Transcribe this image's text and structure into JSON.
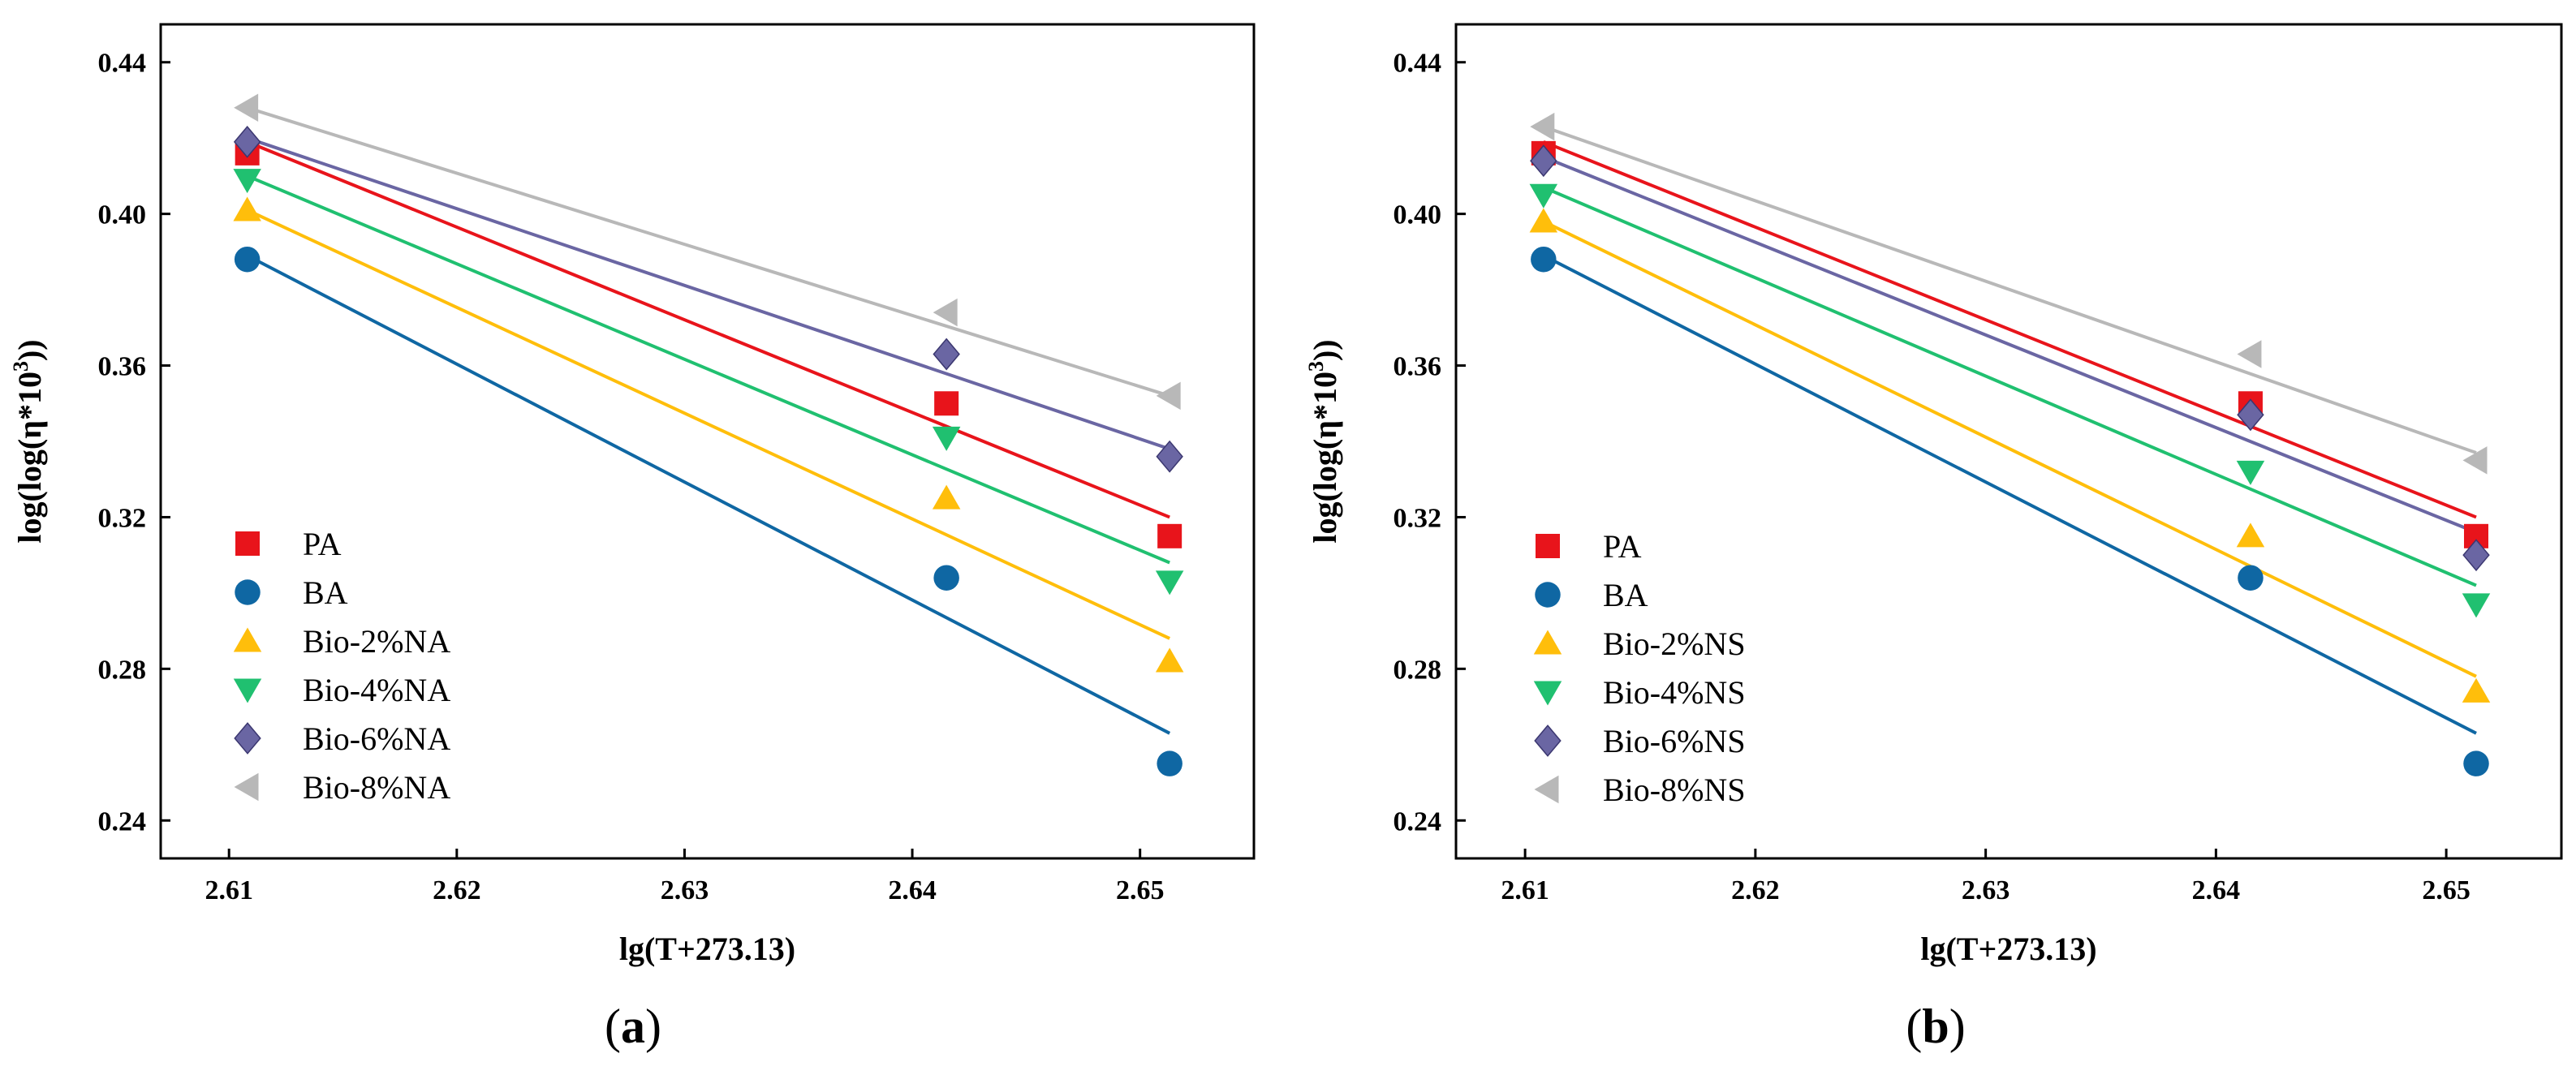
{
  "chart_data": [
    {
      "type": "scatter",
      "panel": "a",
      "caption": "(a)",
      "caption_letter": "a",
      "xlabel": "lg(T+273.13)",
      "ylabel_prefix": "log(log(η*10",
      "ylabel_sup": "3",
      "ylabel_suffix": "))",
      "xlim": [
        2.607,
        2.655
      ],
      "ylim": [
        0.23,
        0.45
      ],
      "xticks": [
        2.61,
        2.62,
        2.63,
        2.64,
        2.65
      ],
      "xtick_labels": [
        "2.61",
        "2.62",
        "2.63",
        "2.64",
        "2.65"
      ],
      "yticks": [
        0.24,
        0.28,
        0.32,
        0.36,
        0.4,
        0.44
      ],
      "ytick_labels": [
        "0.24",
        "0.28",
        "0.32",
        "0.36",
        "0.40",
        "0.44"
      ],
      "legend_position": "bottom-left",
      "series": [
        {
          "name": "PA",
          "color": "#e8141b",
          "marker": "square",
          "x": [
            2.6108,
            2.6415,
            2.6513
          ],
          "y": [
            0.416,
            0.35,
            0.315
          ],
          "fit": [
            [
              2.6108,
              0.419
            ],
            [
              2.6513,
              0.32
            ]
          ]
        },
        {
          "name": "BA",
          "color": "#0f67a3",
          "marker": "circle",
          "x": [
            2.6108,
            2.6415,
            2.6513
          ],
          "y": [
            0.388,
            0.304,
            0.255
          ],
          "fit": [
            [
              2.6108,
              0.389
            ],
            [
              2.6513,
              0.263
            ]
          ]
        },
        {
          "name": "Bio-2%NA",
          "color": "#ffbe0b",
          "marker": "triangle-up",
          "x": [
            2.6108,
            2.6415,
            2.6513
          ],
          "y": [
            0.401,
            0.325,
            0.282
          ],
          "fit": [
            [
              2.6108,
              0.401
            ],
            [
              2.6513,
              0.288
            ]
          ]
        },
        {
          "name": "Bio-4%NA",
          "color": "#20c070",
          "marker": "triangle-down",
          "x": [
            2.6108,
            2.6415,
            2.6513
          ],
          "y": [
            0.409,
            0.341,
            0.303
          ],
          "fit": [
            [
              2.6108,
              0.41
            ],
            [
              2.6513,
              0.308
            ]
          ]
        },
        {
          "name": "Bio-6%NA",
          "color": "#6a66a3",
          "marker": "diamond",
          "x": [
            2.6108,
            2.6415,
            2.6513
          ],
          "y": [
            0.419,
            0.363,
            0.336
          ],
          "fit": [
            [
              2.6108,
              0.42
            ],
            [
              2.6513,
              0.338
            ]
          ]
        },
        {
          "name": "Bio-8%NA",
          "color": "#b8b8b8",
          "marker": "triangle-left",
          "x": [
            2.6108,
            2.6415,
            2.6513
          ],
          "y": [
            0.428,
            0.374,
            0.352
          ],
          "fit": [
            [
              2.6108,
              0.428
            ],
            [
              2.6513,
              0.352
            ]
          ]
        }
      ]
    },
    {
      "type": "scatter",
      "panel": "b",
      "caption": "(b)",
      "caption_letter": "b",
      "xlabel": "lg(T+273.13)",
      "ylabel_prefix": "log(log(η*10",
      "ylabel_sup": "3",
      "ylabel_suffix": "))",
      "xlim": [
        2.607,
        2.655
      ],
      "ylim": [
        0.23,
        0.45
      ],
      "xticks": [
        2.61,
        2.62,
        2.63,
        2.64,
        2.65
      ],
      "xtick_labels": [
        "2.61",
        "2.62",
        "2.63",
        "2.64",
        "2.65"
      ],
      "yticks": [
        0.24,
        0.28,
        0.32,
        0.36,
        0.4,
        0.44
      ],
      "ytick_labels": [
        "0.24",
        "0.28",
        "0.32",
        "0.36",
        "0.40",
        "0.44"
      ],
      "legend_position": "bottom-left",
      "series": [
        {
          "name": "PA",
          "color": "#e8141b",
          "marker": "square",
          "x": [
            2.6108,
            2.6415,
            2.6513
          ],
          "y": [
            0.416,
            0.35,
            0.315
          ],
          "fit": [
            [
              2.6108,
              0.419
            ],
            [
              2.6513,
              0.32
            ]
          ]
        },
        {
          "name": "BA",
          "color": "#0f67a3",
          "marker": "circle",
          "x": [
            2.6108,
            2.6415,
            2.6513
          ],
          "y": [
            0.388,
            0.304,
            0.255
          ],
          "fit": [
            [
              2.6108,
              0.389
            ],
            [
              2.6513,
              0.263
            ]
          ]
        },
        {
          "name": "Bio-2%NS",
          "color": "#ffbe0b",
          "marker": "triangle-up",
          "x": [
            2.6108,
            2.6415,
            2.6513
          ],
          "y": [
            0.398,
            0.315,
            0.274
          ],
          "fit": [
            [
              2.6108,
              0.398
            ],
            [
              2.6513,
              0.278
            ]
          ]
        },
        {
          "name": "Bio-4%NS",
          "color": "#20c070",
          "marker": "triangle-down",
          "x": [
            2.6108,
            2.6415,
            2.6513
          ],
          "y": [
            0.405,
            0.332,
            0.297
          ],
          "fit": [
            [
              2.6108,
              0.407
            ],
            [
              2.6513,
              0.302
            ]
          ]
        },
        {
          "name": "Bio-6%NS",
          "color": "#6a66a3",
          "marker": "diamond",
          "x": [
            2.6108,
            2.6415,
            2.6513
          ],
          "y": [
            0.414,
            0.347,
            0.31
          ],
          "fit": [
            [
              2.6108,
              0.415
            ],
            [
              2.6513,
              0.316
            ]
          ]
        },
        {
          "name": "Bio-8%NS",
          "color": "#b8b8b8",
          "marker": "triangle-left",
          "x": [
            2.6108,
            2.6415,
            2.6513
          ],
          "y": [
            0.423,
            0.363,
            0.335
          ],
          "fit": [
            [
              2.6108,
              0.423
            ],
            [
              2.6513,
              0.337
            ]
          ]
        }
      ]
    }
  ]
}
